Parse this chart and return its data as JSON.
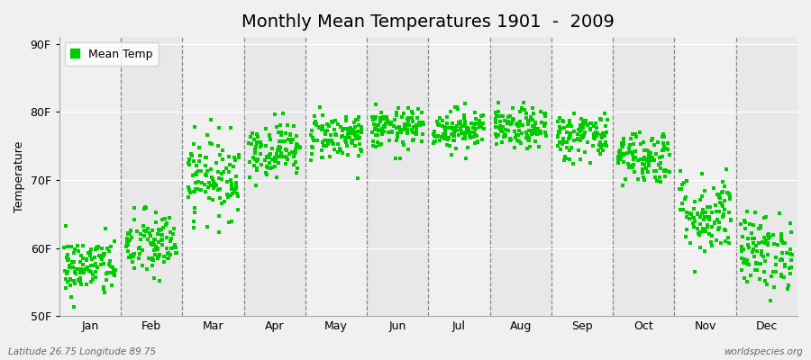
{
  "title": "Monthly Mean Temperatures 1901  -  2009",
  "ylabel": "Temperature",
  "xlabel_bottom_left": "Latitude 26.75 Longitude 89.75",
  "xlabel_bottom_right": "worldspecies.org",
  "ytick_labels": [
    "50F",
    "60F",
    "70F",
    "80F",
    "90F"
  ],
  "ytick_values": [
    50,
    60,
    70,
    80,
    90
  ],
  "ylim": [
    50,
    91
  ],
  "month_names": [
    "Jan",
    "Feb",
    "Mar",
    "Apr",
    "May",
    "Jun",
    "Jul",
    "Aug",
    "Sep",
    "Oct",
    "Nov",
    "Dec"
  ],
  "bg_color": "#f0f0f0",
  "plot_bg_color": "#f0f0f0",
  "alt_band_color": "#e8e8e8",
  "dot_color": "#00cc00",
  "dot_size": 6,
  "legend_label": "Mean Temp",
  "title_fontsize": 14,
  "label_fontsize": 9,
  "axis_fontsize": 9,
  "monthly_means": [
    57.2,
    60.5,
    70.5,
    74.5,
    76.5,
    77.5,
    77.5,
    77.5,
    76.5,
    73.5,
    65.0,
    59.5
  ],
  "monthly_std": [
    2.2,
    2.5,
    3.0,
    2.0,
    1.8,
    1.5,
    1.5,
    1.5,
    1.8,
    2.0,
    3.0,
    2.8
  ],
  "n_years": 109,
  "dashed_line_color": "#888888",
  "grid_color": "#ffffff"
}
